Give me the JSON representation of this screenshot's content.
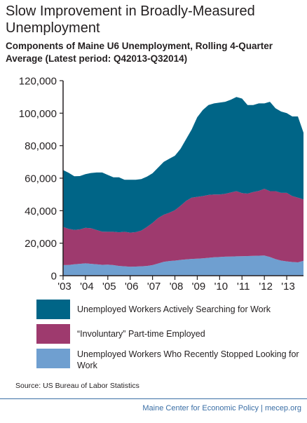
{
  "title": "Slow Improvement in Broadly-Measured Unemployment",
  "subtitle": "Components of Maine U6 Unemployment, Rolling 4-Quarter Average (Latest period: Q42013-Q32014)",
  "source": "Source: US Bureau of Labor Statistics",
  "footer": "Maine Center for Economic Policy | mecep.org",
  "colors": {
    "actively_searching": "#006587",
    "involuntary_part_time": "#9e3a6e",
    "stopped_looking": "#6f9fd0"
  },
  "chart_data": {
    "type": "area",
    "stacked": true,
    "title": "Slow Improvement in Broadly-Measured Unemployment",
    "xlabel": "",
    "ylabel": "",
    "ylim": [
      0,
      120000
    ],
    "yticks": [
      "0",
      "20,000",
      "40,000",
      "60,000",
      "80,000",
      "100,000",
      "120,000"
    ],
    "xticks": [
      "'03",
      "'04",
      "'05",
      "'06",
      "'07",
      "'08",
      "'09",
      "'10",
      "'11",
      "'12",
      "'13"
    ],
    "grid": false,
    "legend_position": "bottom",
    "x": [
      2003.0,
      2003.25,
      2003.5,
      2003.75,
      2004.0,
      2004.25,
      2004.5,
      2004.75,
      2005.0,
      2005.25,
      2005.5,
      2005.75,
      2006.0,
      2006.25,
      2006.5,
      2006.75,
      2007.0,
      2007.25,
      2007.5,
      2007.75,
      2008.0,
      2008.25,
      2008.5,
      2008.75,
      2009.0,
      2009.25,
      2009.5,
      2009.75,
      2010.0,
      2010.25,
      2010.5,
      2010.75,
      2011.0,
      2011.25,
      2011.5,
      2011.75,
      2012.0,
      2012.25,
      2012.5,
      2012.75,
      2013.0,
      2013.25,
      2013.5,
      2013.75
    ],
    "series": [
      {
        "name": "Unemployed Workers Who Recently Stopped Looking for Work",
        "color": "#6f9fd0",
        "values": [
          6500,
          6600,
          7000,
          7300,
          7600,
          7300,
          7000,
          6700,
          6800,
          6500,
          6000,
          5800,
          5500,
          5600,
          5800,
          6000,
          6500,
          7500,
          8500,
          9000,
          9300,
          9700,
          10000,
          10300,
          10500,
          10700,
          11000,
          11300,
          11500,
          11700,
          11800,
          11900,
          12000,
          12100,
          12200,
          12300,
          12400,
          11500,
          10200,
          9300,
          8800,
          8400,
          8200,
          9200
        ]
      },
      {
        "name": "“Involuntary” Part-time Employed",
        "color": "#9e3a6e",
        "values": [
          23500,
          22200,
          21200,
          21200,
          21900,
          21900,
          21100,
          20400,
          20200,
          20500,
          20700,
          21200,
          21000,
          21200,
          22000,
          24000,
          26000,
          28000,
          29000,
          29700,
          31000,
          33300,
          36000,
          37700,
          38000,
          38300,
          38700,
          38700,
          38500,
          38700,
          39400,
          40100,
          38800,
          38400,
          39300,
          39900,
          41100,
          40500,
          41800,
          41700,
          42200,
          40600,
          39800,
          37800
        ]
      },
      {
        "name": "Unemployed Workers Actively Searching for Work",
        "color": "#006587",
        "values": [
          35000,
          34500,
          33000,
          32800,
          33000,
          34000,
          35400,
          36400,
          35000,
          33500,
          33800,
          32000,
          32500,
          32200,
          31700,
          31000,
          30500,
          31000,
          32500,
          33300,
          33500,
          35000,
          38000,
          42000,
          49000,
          53000,
          55300,
          56000,
          56500,
          56600,
          57100,
          58000,
          58200,
          54500,
          53500,
          53800,
          52500,
          55000,
          51000,
          50000,
          49000,
          49000,
          50000,
          41000
        ]
      }
    ]
  }
}
